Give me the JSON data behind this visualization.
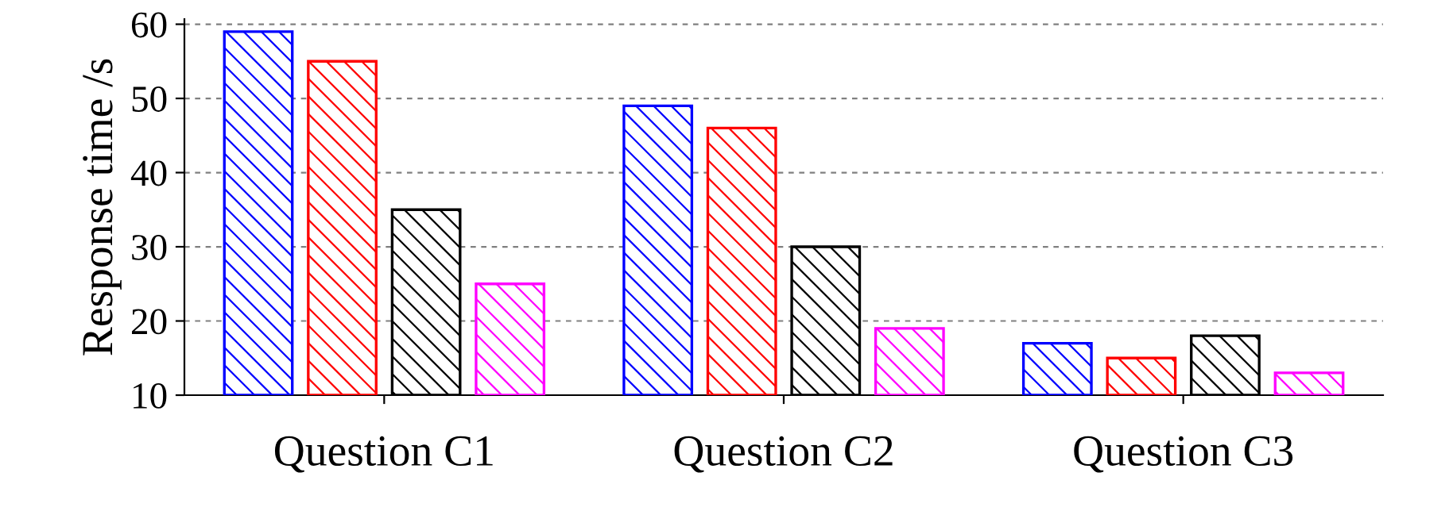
{
  "chart_data": {
    "type": "bar",
    "ylabel": "Response time /s",
    "categories": [
      "Question C1",
      "Question C2",
      "Question C3"
    ],
    "series": [
      {
        "color": "#0000ff",
        "values": [
          59,
          49,
          17
        ]
      },
      {
        "color": "#ff0000",
        "values": [
          55,
          46,
          15
        ]
      },
      {
        "color": "#000000",
        "values": [
          35,
          30,
          18
        ]
      },
      {
        "color": "#ff00ff",
        "values": [
          25,
          19,
          13
        ]
      }
    ],
    "ylim": [
      10,
      60.7
    ],
    "yticks": [
      10,
      20,
      30,
      40,
      50,
      60
    ],
    "grid": "y",
    "legend": false
  }
}
